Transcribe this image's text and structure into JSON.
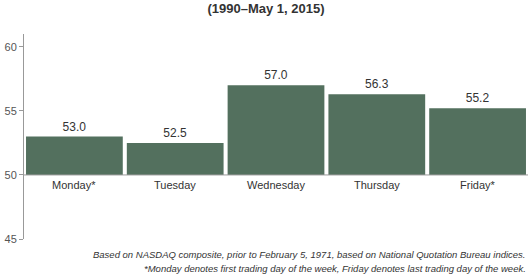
{
  "chart_data": {
    "type": "bar",
    "title": "(1990–May 1, 2015)",
    "categories": [
      "Monday*",
      "Tuesday",
      "Wednesday",
      "Thursday",
      "Friday*"
    ],
    "values": [
      53.0,
      52.5,
      57.0,
      56.3,
      55.2
    ],
    "value_labels": [
      "53.0",
      "52.5",
      "57.0",
      "56.3",
      "55.2"
    ],
    "base": 50,
    "color": "#53705e",
    "ylim": [
      45,
      61
    ],
    "yticks": [
      45,
      50,
      55,
      60
    ],
    "grid": false,
    "data_labels": true,
    "notes": [
      "Based on NASDAQ composite, prior to February 5, 1971, based on National Quotation Bureau indices.",
      "*Monday denotes first trading day of the week, Friday denotes last trading day of the week."
    ]
  }
}
